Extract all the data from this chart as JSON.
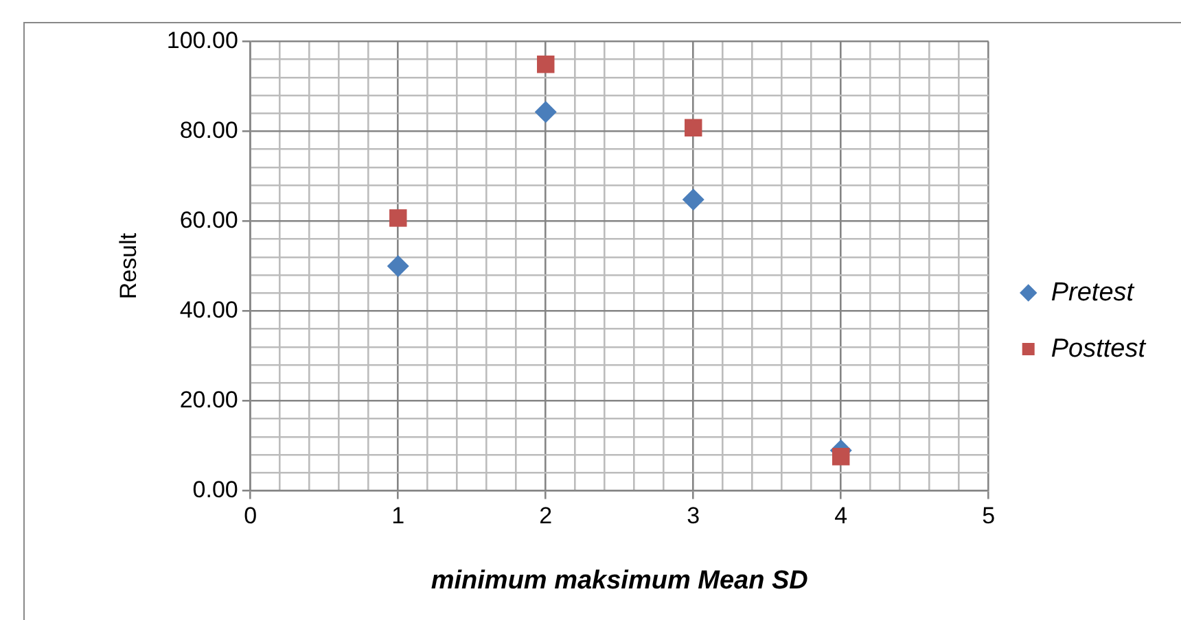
{
  "chart_data": {
    "type": "scatter",
    "xlabel": "minimum maksimum Mean SD",
    "ylabel": "Result",
    "xlim": [
      0,
      5
    ],
    "ylim": [
      0,
      100
    ],
    "xticks": [
      0,
      {
        "value": 0.2,
        "label": null
      },
      {
        "value": 0.4,
        "label": null
      },
      {
        "value": 0.6,
        "label": null
      },
      {
        "value": 0.8,
        "label": null
      },
      1,
      {
        "value": 1.2,
        "label": null
      },
      {
        "value": 1.4,
        "label": null
      },
      {
        "value": 1.6,
        "label": null
      },
      {
        "value": 1.8,
        "label": null
      },
      2,
      {
        "value": 2.2,
        "label": null
      },
      {
        "value": 2.4,
        "label": null
      },
      {
        "value": 2.6,
        "label": null
      },
      {
        "value": 2.8,
        "label": null
      },
      3,
      {
        "value": 3.2,
        "label": null
      },
      {
        "value": 3.4,
        "label": null
      },
      {
        "value": 3.6,
        "label": null
      },
      {
        "value": 3.8,
        "label": null
      },
      4,
      {
        "value": 4.2,
        "label": null
      },
      {
        "value": 4.4,
        "label": null
      },
      {
        "value": 4.6,
        "label": null
      },
      {
        "value": 4.8,
        "label": null
      },
      5
    ],
    "yticks": [
      {
        "value": 0,
        "label": "0.00"
      },
      {
        "value": 4,
        "label": null
      },
      {
        "value": 8,
        "label": null
      },
      {
        "value": 12,
        "label": null
      },
      {
        "value": 16,
        "label": null
      },
      {
        "value": 20,
        "label": "20.00"
      },
      {
        "value": 24,
        "label": null
      },
      {
        "value": 28,
        "label": null
      },
      {
        "value": 32,
        "label": null
      },
      {
        "value": 36,
        "label": null
      },
      {
        "value": 40,
        "label": "40.00"
      },
      {
        "value": 44,
        "label": null
      },
      {
        "value": 48,
        "label": null
      },
      {
        "value": 52,
        "label": null
      },
      {
        "value": 56,
        "label": null
      },
      {
        "value": 60,
        "label": "60.00"
      },
      {
        "value": 64,
        "label": null
      },
      {
        "value": 68,
        "label": null
      },
      {
        "value": 72,
        "label": null
      },
      {
        "value": 76,
        "label": null
      },
      {
        "value": 80,
        "label": "80.00"
      },
      {
        "value": 84,
        "label": null
      },
      {
        "value": 88,
        "label": null
      },
      {
        "value": 92,
        "label": null
      },
      {
        "value": 96,
        "label": null
      },
      {
        "value": 100,
        "label": "100.00"
      }
    ],
    "grid": true,
    "legend": "right",
    "series": [
      {
        "name": "Pretest",
        "color": "#4a7ebb",
        "marker": "diamond",
        "x": [
          1,
          2,
          3,
          4
        ],
        "values": [
          50,
          84.3,
          64.8,
          9
        ]
      },
      {
        "name": "Posttest",
        "color": "#c0504d",
        "marker": "square",
        "x": [
          1,
          2,
          3,
          4
        ],
        "values": [
          60.7,
          94.9,
          80.8,
          7.6
        ]
      }
    ]
  }
}
